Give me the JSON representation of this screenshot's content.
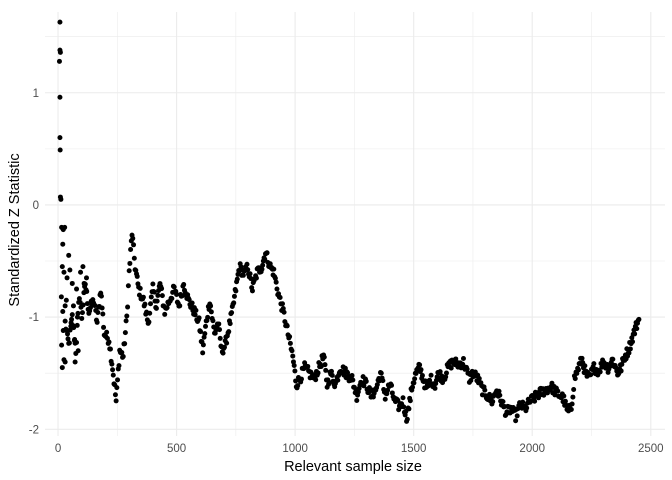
{
  "chart_data": {
    "type": "scatter",
    "title": "",
    "xlabel": "Relevant sample size",
    "ylabel": "Standardized Z Statistic",
    "xlim": [
      -55,
      2560
    ],
    "ylim": [
      -2.06,
      1.72
    ],
    "x_ticks": [
      0,
      500,
      1000,
      1500,
      2000,
      2500
    ],
    "y_ticks": [
      -2,
      -1,
      0,
      1
    ],
    "grid": true,
    "legend": "none",
    "point_color": "#000000",
    "grid_color": "#ebebeb",
    "trace_anchors": [
      [
        30,
        -1.05
      ],
      [
        45,
        -1.25
      ],
      [
        60,
        -1.0
      ],
      [
        75,
        -1.3
      ],
      [
        90,
        -0.8
      ],
      [
        100,
        -1.0
      ],
      [
        115,
        -0.7
      ],
      [
        130,
        -0.95
      ],
      [
        150,
        -0.85
      ],
      [
        165,
        -1.05
      ],
      [
        180,
        -0.75
      ],
      [
        195,
        -1.15
      ],
      [
        215,
        -1.2
      ],
      [
        230,
        -1.45
      ],
      [
        245,
        -1.75
      ],
      [
        260,
        -1.3
      ],
      [
        275,
        -1.35
      ],
      [
        290,
        -1.0
      ],
      [
        300,
        -0.6
      ],
      [
        312,
        -0.25
      ],
      [
        325,
        -0.55
      ],
      [
        340,
        -0.75
      ],
      [
        360,
        -0.85
      ],
      [
        380,
        -1.05
      ],
      [
        400,
        -0.75
      ],
      [
        415,
        -0.9
      ],
      [
        430,
        -0.7
      ],
      [
        450,
        -0.95
      ],
      [
        470,
        -0.85
      ],
      [
        490,
        -0.75
      ],
      [
        510,
        -0.9
      ],
      [
        530,
        -0.7
      ],
      [
        550,
        -0.85
      ],
      [
        575,
        -0.95
      ],
      [
        595,
        -1.05
      ],
      [
        610,
        -1.3
      ],
      [
        625,
        -1.05
      ],
      [
        640,
        -0.85
      ],
      [
        660,
        -1.15
      ],
      [
        675,
        -1.05
      ],
      [
        690,
        -1.3
      ],
      [
        705,
        -1.25
      ],
      [
        720,
        -1.1
      ],
      [
        735,
        -0.95
      ],
      [
        750,
        -0.75
      ],
      [
        765,
        -0.55
      ],
      [
        785,
        -0.62
      ],
      [
        800,
        -0.55
      ],
      [
        820,
        -0.75
      ],
      [
        840,
        -0.6
      ],
      [
        860,
        -0.55
      ],
      [
        875,
        -0.42
      ],
      [
        895,
        -0.55
      ],
      [
        910,
        -0.6
      ],
      [
        930,
        -0.8
      ],
      [
        950,
        -0.95
      ],
      [
        970,
        -1.15
      ],
      [
        990,
        -1.35
      ],
      [
        1005,
        -1.6
      ],
      [
        1020,
        -1.55
      ],
      [
        1040,
        -1.45
      ],
      [
        1060,
        -1.5
      ],
      [
        1080,
        -1.55
      ],
      [
        1100,
        -1.45
      ],
      [
        1120,
        -1.35
      ],
      [
        1135,
        -1.6
      ],
      [
        1150,
        -1.5
      ],
      [
        1170,
        -1.6
      ],
      [
        1190,
        -1.45
      ],
      [
        1215,
        -1.5
      ],
      [
        1240,
        -1.55
      ],
      [
        1260,
        -1.7
      ],
      [
        1280,
        -1.55
      ],
      [
        1300,
        -1.6
      ],
      [
        1320,
        -1.7
      ],
      [
        1340,
        -1.65
      ],
      [
        1360,
        -1.5
      ],
      [
        1380,
        -1.7
      ],
      [
        1400,
        -1.6
      ],
      [
        1420,
        -1.75
      ],
      [
        1440,
        -1.8
      ],
      [
        1455,
        -1.75
      ],
      [
        1470,
        -1.9
      ],
      [
        1480,
        -1.8
      ],
      [
        1495,
        -1.6
      ],
      [
        1510,
        -1.5
      ],
      [
        1525,
        -1.45
      ],
      [
        1540,
        -1.55
      ],
      [
        1555,
        -1.65
      ],
      [
        1570,
        -1.55
      ],
      [
        1590,
        -1.6
      ],
      [
        1605,
        -1.5
      ],
      [
        1625,
        -1.55
      ],
      [
        1645,
        -1.45
      ],
      [
        1665,
        -1.4
      ],
      [
        1690,
        -1.42
      ],
      [
        1710,
        -1.4
      ],
      [
        1735,
        -1.55
      ],
      [
        1750,
        -1.5
      ],
      [
        1770,
        -1.55
      ],
      [
        1790,
        -1.65
      ],
      [
        1810,
        -1.7
      ],
      [
        1830,
        -1.75
      ],
      [
        1850,
        -1.65
      ],
      [
        1870,
        -1.75
      ],
      [
        1890,
        -1.85
      ],
      [
        1910,
        -1.82
      ],
      [
        1930,
        -1.88
      ],
      [
        1950,
        -1.78
      ],
      [
        1970,
        -1.82
      ],
      [
        1990,
        -1.75
      ],
      [
        2010,
        -1.72
      ],
      [
        2030,
        -1.68
      ],
      [
        2055,
        -1.65
      ],
      [
        2080,
        -1.62
      ],
      [
        2105,
        -1.68
      ],
      [
        2130,
        -1.72
      ],
      [
        2150,
        -1.85
      ],
      [
        2165,
        -1.8
      ],
      [
        2178,
        -1.55
      ],
      [
        2195,
        -1.45
      ],
      [
        2210,
        -1.38
      ],
      [
        2225,
        -1.5
      ],
      [
        2240,
        -1.55
      ],
      [
        2260,
        -1.45
      ],
      [
        2280,
        -1.48
      ],
      [
        2300,
        -1.4
      ],
      [
        2320,
        -1.45
      ],
      [
        2340,
        -1.38
      ],
      [
        2360,
        -1.5
      ],
      [
        2375,
        -1.45
      ],
      [
        2390,
        -1.35
      ],
      [
        2405,
        -1.3
      ],
      [
        2420,
        -1.2
      ],
      [
        2435,
        -1.1
      ],
      [
        2450,
        -1.02
      ]
    ],
    "early_points": [
      [
        8,
        1.63
      ],
      [
        8,
        1.38
      ],
      [
        10,
        1.36
      ],
      [
        6,
        1.28
      ],
      [
        8,
        0.96
      ],
      [
        8,
        0.6
      ],
      [
        9,
        0.49
      ],
      [
        10,
        0.07
      ],
      [
        12,
        0.05
      ],
      [
        15,
        -0.2
      ],
      [
        20,
        -0.35
      ],
      [
        22,
        -0.22
      ],
      [
        28,
        -0.2
      ],
      [
        18,
        -0.55
      ],
      [
        25,
        -0.6
      ],
      [
        14,
        -0.82
      ],
      [
        20,
        -0.95
      ],
      [
        30,
        -0.9
      ],
      [
        22,
        -1.12
      ],
      [
        15,
        -1.25
      ],
      [
        25,
        -1.38
      ],
      [
        18,
        -1.45
      ],
      [
        30,
        -1.4
      ],
      [
        35,
        -0.85
      ],
      [
        40,
        -1.15
      ],
      [
        38,
        -0.65
      ],
      [
        45,
        -0.45
      ],
      [
        50,
        -0.58
      ],
      [
        55,
        -1.05
      ],
      [
        60,
        -0.7
      ],
      [
        65,
        -0.9
      ],
      [
        70,
        -1.2
      ],
      [
        72,
        -1.4
      ],
      [
        78,
        -0.75
      ],
      [
        82,
        -1.0
      ],
      [
        85,
        -1.3
      ],
      [
        95,
        -0.6
      ],
      [
        105,
        -0.55
      ],
      [
        110,
        -0.7
      ],
      [
        120,
        -0.65
      ]
    ]
  }
}
